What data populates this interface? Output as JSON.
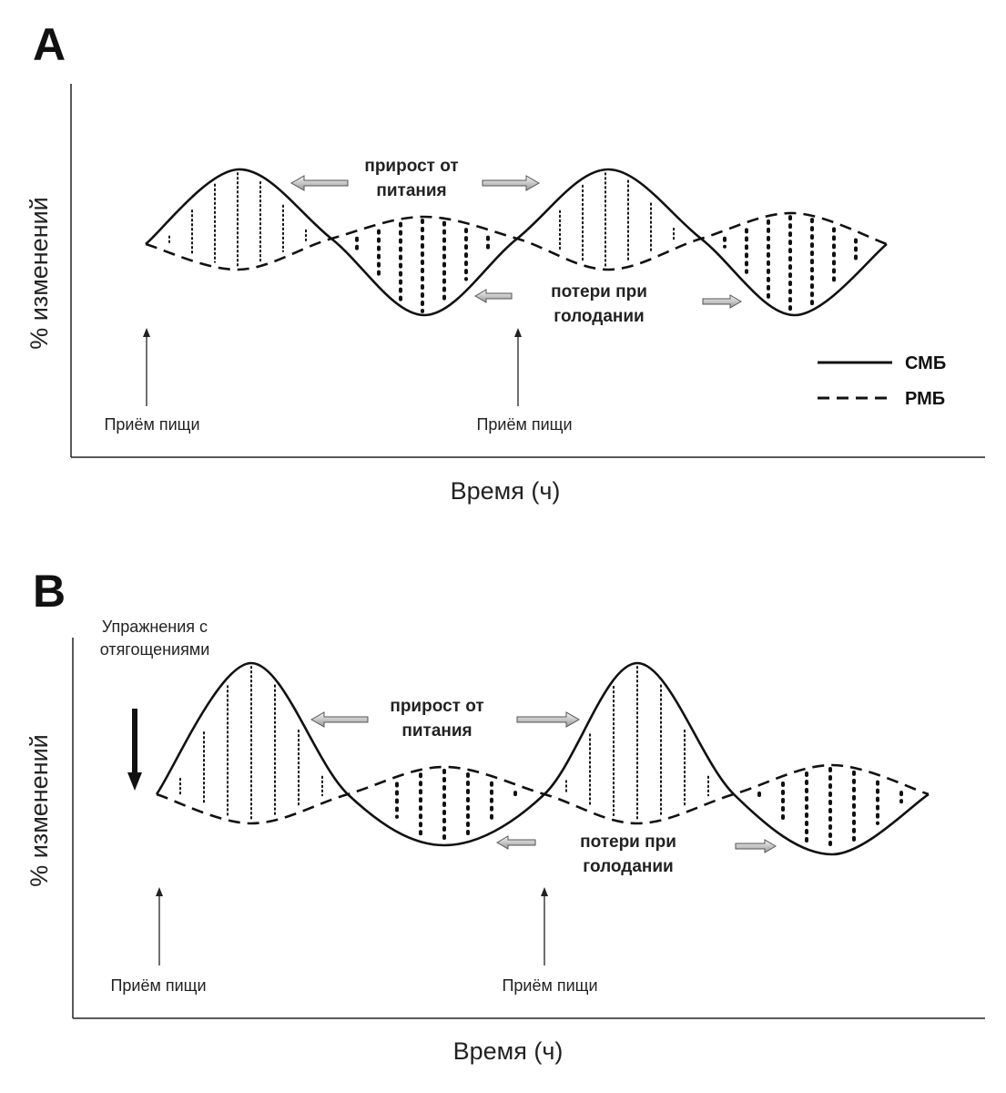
{
  "panel_a": {
    "label": "A",
    "xlabel": "Время (ч)",
    "ylabel": "% изменений",
    "gain": [
      "прирост от",
      "питания"
    ],
    "loss": [
      "потери при",
      "голодании"
    ],
    "meal_1": "Приём пищи",
    "meal_2": "Приём пищи",
    "legend": {
      "solid": "СМБ",
      "dashed": "РМБ"
    }
  },
  "panel_b": {
    "label": "B",
    "xlabel": "Время (ч)",
    "ylabel": "% изменений",
    "exercise": [
      "Упражнения с",
      "отягощениями"
    ],
    "gain": [
      "прирост от",
      "питания"
    ],
    "loss": [
      "потери при",
      "голодании"
    ],
    "meal_1": "Приём пищи",
    "meal_2": "Приём пищи"
  },
  "colors": {
    "line": "#111111",
    "background": "#ffffff",
    "arrow_fill": "#cfcfcf"
  }
}
